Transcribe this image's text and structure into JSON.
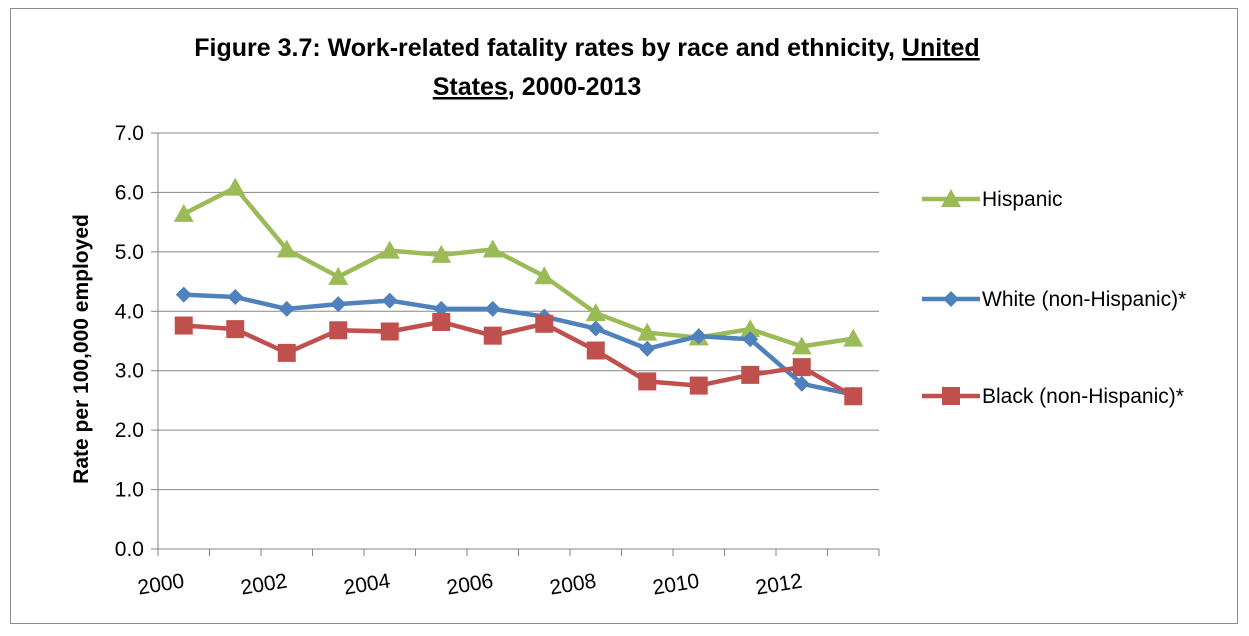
{
  "chart_data": {
    "type": "line",
    "title_line1": "Figure 3.7:  Work-related fatality rates by race and ethnicity, ",
    "title_line1_underlined": "United",
    "title_line2_underlined": "States",
    "title_line2": ", 2000-2013",
    "ylabel": "Rate per 100,000 employed",
    "xlabel": "",
    "ylim": [
      0,
      7
    ],
    "y_ticks": [
      "0.0",
      "1.0",
      "2.0",
      "3.0",
      "4.0",
      "5.0",
      "6.0",
      "7.0"
    ],
    "x_tick_labels": [
      "2000",
      "2002",
      "2004",
      "2006",
      "2008",
      "2010",
      "2012"
    ],
    "x": [
      2000,
      2001,
      2002,
      2003,
      2004,
      2005,
      2006,
      2007,
      2008,
      2009,
      2010,
      2011,
      2012,
      2013
    ],
    "grid": true,
    "legend_position": "right",
    "series": [
      {
        "name": "Hispanic",
        "marker": "triangle",
        "color": "#9bbb59",
        "values": [
          5.64,
          6.08,
          5.04,
          4.58,
          5.02,
          4.95,
          5.04,
          4.59,
          3.97,
          3.64,
          3.56,
          3.7,
          3.41,
          3.54
        ]
      },
      {
        "name": "White (non-Hispanic)*",
        "marker": "diamond",
        "color": "#4f81bd",
        "values": [
          4.28,
          4.24,
          4.04,
          4.12,
          4.18,
          4.04,
          4.04,
          3.91,
          3.71,
          3.37,
          3.58,
          3.53,
          2.78,
          2.6
        ]
      },
      {
        "name": "Black (non-Hispanic)*",
        "marker": "square",
        "color": "#c0504d",
        "values": [
          3.76,
          3.7,
          3.3,
          3.68,
          3.66,
          3.82,
          3.59,
          3.79,
          3.34,
          2.82,
          2.75,
          2.93,
          3.06,
          2.57
        ]
      }
    ]
  }
}
